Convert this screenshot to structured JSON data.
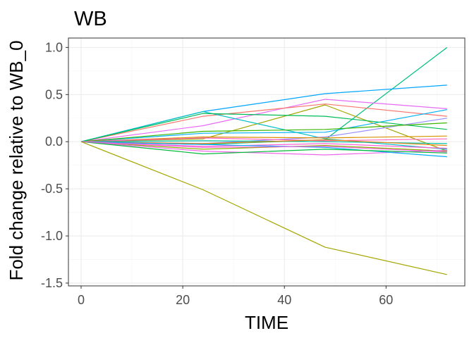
{
  "chart_data": {
    "type": "line",
    "title": "WB",
    "xlabel": "TIME",
    "ylabel": "Fold change relative to WB_0",
    "x": [
      0,
      24,
      48,
      72
    ],
    "xlim": [
      -2.5,
      75.5
    ],
    "ylim": [
      -1.53,
      1.1
    ],
    "xticks": [
      0,
      20,
      40,
      60
    ],
    "xtick_labels": [
      "0",
      "20",
      "40",
      "60"
    ],
    "yticks": [
      1.0,
      0.5,
      0.0,
      -0.5,
      -1.0,
      -1.5
    ],
    "ytick_labels": [
      "1.0",
      "0.5",
      "0.0",
      "-0.5",
      "-1.0",
      "-1.5"
    ],
    "grid": true,
    "legend": "none",
    "colors": {
      "panel_background": "#ffffff",
      "panel_border": "#333333",
      "grid_major": "#ebebeb",
      "grid_minor": "#f5f5f5",
      "tick_label": "#4d4d4d"
    },
    "series": [
      {
        "color": "#00bf7d",
        "values": [
          0,
          -0.03,
          0.02,
          1.0
        ]
      },
      {
        "color": "#00a5ff",
        "values": [
          0,
          0.32,
          0.51,
          0.6
        ]
      },
      {
        "color": "#e76bf3",
        "values": [
          0,
          0.17,
          0.45,
          0.35
        ]
      },
      {
        "color": "#f8766d",
        "values": [
          0,
          0.27,
          0.4,
          0.27
        ]
      },
      {
        "color": "#a3a500",
        "values": [
          0,
          0.03,
          0.39,
          -0.1
        ]
      },
      {
        "color": "#00b0f6",
        "values": [
          0,
          0.09,
          0.1,
          0.34
        ]
      },
      {
        "color": "#00bfc4",
        "values": [
          0,
          0.32,
          0.03,
          -0.08
        ]
      },
      {
        "color": "#00bc56",
        "values": [
          0,
          0.3,
          0.27,
          0.13
        ]
      },
      {
        "color": "#9590ff",
        "values": [
          0,
          -0.02,
          0.05,
          0.25
        ]
      },
      {
        "color": "#39b600",
        "values": [
          0,
          0.11,
          0.13,
          0.2
        ]
      },
      {
        "color": "#d89000",
        "values": [
          0,
          0.05,
          0.04,
          0.06
        ]
      },
      {
        "color": "#ff62bc",
        "values": [
          0,
          0.04,
          0.01,
          0.03
        ]
      },
      {
        "color": "#00c1a3",
        "values": [
          0,
          0.01,
          0.0,
          -0.02
        ]
      },
      {
        "color": "#e7861b",
        "values": [
          0,
          -0.02,
          0.02,
          -0.04
        ]
      },
      {
        "color": "#fd61d1",
        "values": [
          0,
          -0.05,
          -0.02,
          -0.07
        ]
      },
      {
        "color": "#8ab000",
        "values": [
          0,
          -0.08,
          -0.04,
          -0.1
        ]
      },
      {
        "color": "#ef67eb",
        "values": [
          0,
          -0.1,
          -0.14,
          -0.09
        ]
      },
      {
        "color": "#00abfd",
        "values": [
          0,
          -0.03,
          -0.06,
          -0.16
        ]
      },
      {
        "color": "#00ba38",
        "values": [
          0,
          -0.13,
          -0.08,
          -0.12
        ]
      },
      {
        "color": "#f564e3",
        "values": [
          0,
          -0.06,
          -0.05,
          -0.11
        ]
      },
      {
        "color": "#a3a500",
        "values": [
          0,
          -0.51,
          -1.12,
          -1.41
        ]
      }
    ]
  }
}
